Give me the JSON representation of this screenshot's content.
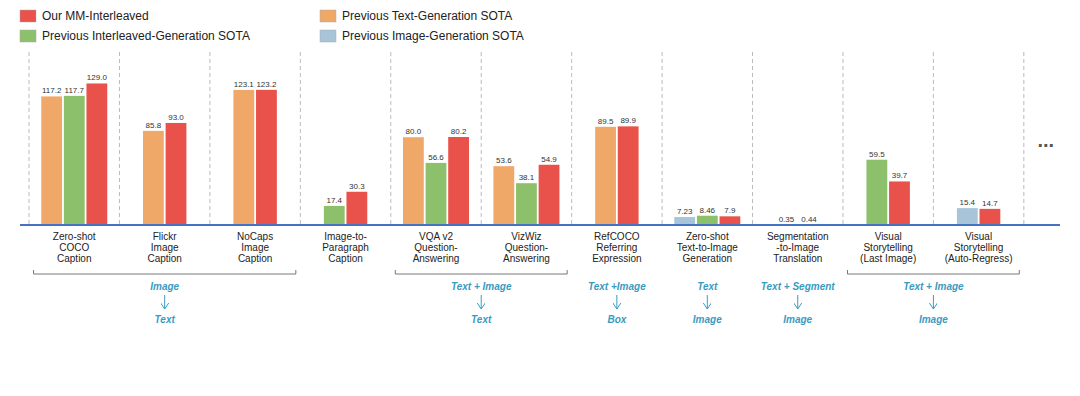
{
  "chart_data": {
    "type": "bar",
    "categories": [
      "Zero-shot\nCOCO\nCaption",
      "Flickr\nImage\nCaption",
      "NoCaps\nImage\nCaption",
      "Image-to-\nParagraph\nCaption",
      "VQA v2\nQuestion-\nAnswering",
      "VizWiz\nQuestion-\nAnswering",
      "RefCOCO\nReferring\nExpression",
      "Zero-shot\nText-to-Image\nGeneration",
      "Segmentation\n-to-Image\nTranslation",
      "Visual\nStorytelling\n(Last Image)",
      "Visual\nStorytelling\n(Auto-Regress)"
    ],
    "series": [
      {
        "name": "Our MM-Interleaved",
        "color": "#E8524A",
        "values": [
          129.0,
          93.0,
          123.2,
          30.3,
          80.2,
          54.9,
          89.9,
          7.9,
          0.44,
          39.7,
          14.7
        ],
        "value_labels": [
          "129.0",
          "93.0",
          "123.2",
          "30.3",
          "80.2",
          "54.9",
          "89.9",
          "7.9",
          "0.44",
          "39.7",
          "14.7"
        ]
      },
      {
        "name": "Previous Text-Generation SOTA",
        "color": "#F0A868",
        "values": [
          117.2,
          85.8,
          123.1,
          null,
          80.0,
          53.6,
          89.5,
          null,
          null,
          null,
          null
        ],
        "value_labels": [
          "117.2",
          "85.8",
          "123.1",
          null,
          "80.0",
          "53.6",
          "89.5",
          null,
          null,
          null,
          null
        ]
      },
      {
        "name": "Previous Interleaved-Generation SOTA",
        "color": "#8DC06A",
        "values": [
          117.7,
          null,
          null,
          17.4,
          56.6,
          38.1,
          null,
          8.46,
          null,
          59.5,
          null
        ],
        "value_labels": [
          "117.7",
          null,
          null,
          "17.4",
          "56.6",
          "38.1",
          null,
          "8.46",
          null,
          "59.5",
          null
        ]
      },
      {
        "name": "Previous Image-Generation SOTA",
        "color": "#A8C4D8",
        "values": [
          null,
          null,
          null,
          null,
          null,
          null,
          null,
          7.23,
          0.35,
          null,
          15.4
        ],
        "value_labels": [
          null,
          null,
          null,
          null,
          null,
          null,
          null,
          "7.23",
          "0.35",
          null,
          "15.4"
        ]
      }
    ],
    "annotations": [
      {
        "groups": [
          0,
          1,
          2
        ],
        "input": "Image",
        "output": "Text"
      },
      {
        "groups": [
          4,
          5
        ],
        "input": "Text + Image",
        "output": "Text"
      },
      {
        "groups": [
          6
        ],
        "input": "Text +Image",
        "output": "Box"
      },
      {
        "groups": [
          7
        ],
        "input": "Text",
        "output": "Image"
      },
      {
        "groups": [
          8
        ],
        "input": "Text + Segment",
        "output": "Image"
      },
      {
        "groups": [
          9,
          10
        ],
        "input": "Text + Image",
        "output": "Image"
      },
      {
        "text": "..."
      }
    ],
    "ylim": [
      0,
      152.22
    ],
    "data_labels": true,
    "tick_labels": false,
    "grid": false,
    "legend": "top-left"
  }
}
